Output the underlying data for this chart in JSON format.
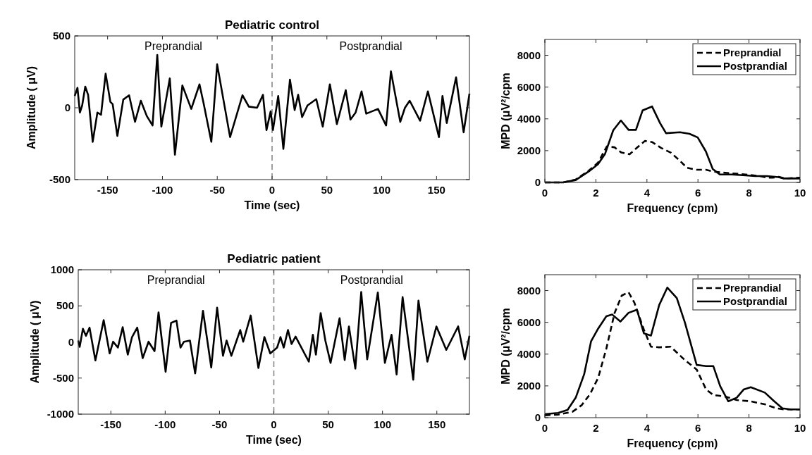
{
  "chart_data": [
    {
      "type": "line",
      "title": "Pediatric control",
      "xlabel": "Time (sec)",
      "ylabel": "Amplitude ( μV)",
      "annotations": [
        "Preprandial",
        "Postprandial"
      ],
      "x": [
        -180,
        -177.5,
        -175.3,
        -173.2,
        -170.4,
        -167.8,
        -163.6,
        -159.3,
        -156,
        -151.8,
        -147.5,
        -145.4,
        -141.1,
        -135.7,
        -130.4,
        -125,
        -119.7,
        -114.3,
        -109,
        -104.7,
        -101,
        -93.3,
        -88.6,
        -81.8,
        -73.7,
        -66.2,
        -62.5,
        -55.4,
        -50.1,
        -38.3,
        -27,
        -21.2,
        -13.7,
        -8.3,
        -5.1,
        -1.3,
        0.8,
        5.6,
        10.3,
        16.3,
        20.6,
        23.8,
        27.4,
        32.3,
        40.3,
        46.2,
        52.7,
        59.1,
        67.2,
        71.5,
        76.2,
        81.6,
        85.9,
        96.6,
        104,
        108.4,
        116.9,
        121.2,
        125.5,
        135,
        142.1,
        152.2,
        155.4,
        159.3,
        167.8,
        174.7,
        180
      ],
      "series": [
        {
          "color": "#000000",
          "values": [
            82,
            139,
            -33,
            16,
            147,
            90,
            -237,
            -33,
            -49,
            237,
            41,
            25,
            -196,
            57,
            87,
            -98,
            49,
            -57,
            -123,
            368,
            -131,
            204,
            -327,
            155,
            -8,
            163,
            33,
            -237,
            302,
            -204,
            87,
            8,
            0,
            90,
            -155,
            -25,
            -155,
            82,
            -286,
            196,
            -16,
            90,
            -65,
            16,
            60,
            -131,
            163,
            -114,
            122,
            -82,
            -33,
            114,
            -41,
            -8,
            -123,
            253,
            -98,
            0,
            49,
            -90,
            114,
            -204,
            82,
            -106,
            212,
            -171,
            98
          ]
        }
      ],
      "xlim": [
        -180,
        180
      ],
      "xticks": [
        -150,
        -100,
        -50,
        0,
        50,
        100,
        150
      ],
      "ylim": [
        -500,
        500
      ],
      "yticks": [
        -500,
        0,
        500
      ],
      "ref_lines": [
        {
          "axis": "x",
          "value": 0,
          "color": "#808080",
          "line_style": "dashed"
        }
      ]
    },
    {
      "type": "line",
      "xlabel": "Frequency (cpm)",
      "ylabel": "MPD (μV²/cpm",
      "legend": "top right",
      "series": [
        {
          "name": "Preprandial",
          "color": "#000000",
          "line_style": "dashed",
          "x": [
            0,
            0.71,
            1.21,
            1.72,
            2.08,
            2.43,
            2.73,
            3,
            3.32,
            3.6,
            3.92,
            4.2,
            4.56,
            4.93,
            5.25,
            5.57,
            5.94,
            6.31,
            6.58,
            6.95,
            7.5,
            8.05,
            8.42,
            8.7,
            8.93,
            9.16,
            9.43,
            10
          ],
          "values": [
            0,
            0,
            180,
            740,
            1240,
            2270,
            2210,
            1880,
            1770,
            2170,
            2610,
            2540,
            2170,
            1880,
            1430,
            920,
            800,
            800,
            690,
            620,
            550,
            470,
            400,
            300,
            300,
            350,
            250,
            300
          ]
        },
        {
          "name": "Postprandial",
          "color": "#000000",
          "line_style": "solid",
          "x": [
            0,
            0.71,
            1.21,
            1.72,
            2.08,
            2.36,
            2.68,
            2.98,
            3.28,
            3.57,
            3.83,
            4.2,
            4.52,
            4.75,
            5.3,
            5.67,
            5.99,
            6.31,
            6.58,
            6.86,
            7.32,
            7.87,
            8.24,
            8.7,
            9.16,
            9.34,
            10
          ],
          "values": [
            0,
            0,
            150,
            690,
            1140,
            1800,
            3280,
            3900,
            3310,
            3310,
            4530,
            4780,
            3720,
            3100,
            3160,
            3060,
            2830,
            1950,
            840,
            500,
            500,
            440,
            400,
            400,
            330,
            250,
            250
          ]
        }
      ],
      "xlim": [
        0,
        10
      ],
      "xticks": [
        0,
        2,
        4,
        6,
        8,
        10
      ],
      "ylim": [
        0,
        9000
      ],
      "yticks": [
        0,
        2000,
        4000,
        6000,
        8000
      ]
    },
    {
      "type": "line",
      "title": "Pediatric patient",
      "xlabel": "Time (sec)",
      "ylabel": "Amplitude ( μV)",
      "annotations": [
        "Preprandial",
        "Postprandial"
      ],
      "x": [
        -180,
        -178.7,
        -175.7,
        -172.9,
        -169.6,
        -164.2,
        -156.6,
        -151.1,
        -147.9,
        -143.5,
        -139.1,
        -134.4,
        -130.5,
        -125.7,
        -120.7,
        -115.3,
        -109.8,
        -106.1,
        -99.6,
        -94.6,
        -89.6,
        -85.9,
        -82.7,
        -77.2,
        -72.4,
        -65.2,
        -57.6,
        -52.2,
        -46.8,
        -43.5,
        -39.1,
        -30.9,
        -28.2,
        -21.3,
        -14.2,
        -8.7,
        -3.3,
        3,
        6.1,
        9.1,
        13,
        16.3,
        20,
        32.2,
        35.9,
        38.7,
        43.1,
        47.4,
        52.2,
        60.5,
        65.2,
        69.1,
        75,
        80.4,
        85.9,
        95.7,
        102.2,
        108.3,
        113,
        118.5,
        128.3,
        133.1,
        141.3,
        149.6,
        158.7,
        169.6,
        175.7,
        180
      ],
      "series": [
        {
          "color": "#000000",
          "values": [
            20,
            -68,
            182,
            85,
            198,
            -256,
            302,
            -159,
            3,
            -78,
            205,
            -176,
            68,
            198,
            -224,
            3,
            -127,
            410,
            -413,
            263,
            296,
            -78,
            3,
            20,
            -436,
            432,
            -354,
            475,
            -192,
            20,
            -192,
            166,
            3,
            367,
            -361,
            68,
            -159,
            -78,
            68,
            -78,
            166,
            -29,
            75,
            -273,
            100,
            -176,
            400,
            20,
            -289,
            328,
            -250,
            215,
            -370,
            692,
            -241,
            685,
            -289,
            100,
            -451,
            621,
            -524,
            572,
            -273,
            215,
            -110,
            215,
            -241,
            85
          ]
        }
      ],
      "xlim": [
        -180,
        180
      ],
      "xticks": [
        -150,
        -100,
        -50,
        0,
        50,
        100,
        150
      ],
      "ylim": [
        -1000,
        1000
      ],
      "yticks": [
        -1000,
        -500,
        0,
        500,
        1000
      ],
      "ref_lines": [
        {
          "axis": "x",
          "value": 0,
          "color": "#808080",
          "line_style": "dashed"
        }
      ]
    },
    {
      "type": "line",
      "xlabel": "Frequency (cpm)",
      "ylabel": "MPD (μV²/cpm",
      "legend": "top right",
      "series": [
        {
          "name": "Preprandial",
          "color": "#000000",
          "line_style": "dashed",
          "x": [
            0,
            0.52,
            1.08,
            1.44,
            1.77,
            2.09,
            2.41,
            2.73,
            3.01,
            3.28,
            3.51,
            3.88,
            4.16,
            4.48,
            4.93,
            5.49,
            5.95,
            6.32,
            6.6,
            7.06,
            7.52,
            8.07,
            8.62,
            9.08,
            9.36,
            10
          ],
          "values": [
            150,
            190,
            370,
            780,
            1480,
            2510,
            4350,
            6570,
            7680,
            7900,
            7230,
            5540,
            4470,
            4430,
            4470,
            3620,
            3030,
            1770,
            1430,
            1330,
            1110,
            1030,
            840,
            590,
            520,
            520
          ]
        },
        {
          "name": "Postprandial",
          "color": "#000000",
          "line_style": "solid",
          "x": [
            0,
            0.52,
            0.89,
            1.21,
            1.54,
            1.81,
            2.09,
            2.41,
            2.64,
            2.96,
            3.28,
            3.61,
            3.88,
            4.16,
            4.48,
            4.8,
            5.17,
            5.49,
            5.95,
            6.32,
            6.6,
            6.87,
            7.19,
            7.52,
            7.79,
            8.07,
            8.62,
            8.99,
            9.31,
            9.63,
            10
          ],
          "values": [
            220,
            300,
            490,
            1260,
            2730,
            4800,
            5610,
            6380,
            6490,
            6050,
            6600,
            6790,
            5310,
            5170,
            7090,
            8190,
            7530,
            5980,
            3320,
            3250,
            3250,
            1990,
            1030,
            1260,
            1770,
            1920,
            1580,
            1030,
            590,
            520,
            520
          ]
        }
      ],
      "xlim": [
        0,
        10
      ],
      "xticks": [
        0,
        2,
        4,
        6,
        8,
        10
      ],
      "ylim": [
        0,
        9000
      ],
      "yticks": [
        0,
        2000,
        4000,
        6000,
        8000
      ]
    }
  ]
}
